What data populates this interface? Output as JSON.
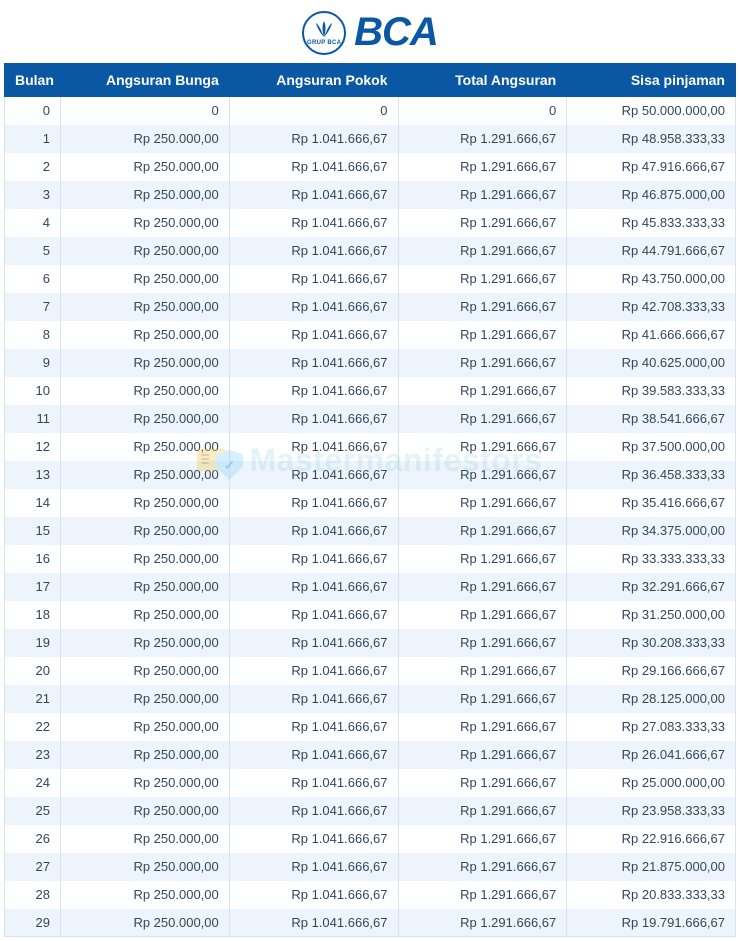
{
  "logo": {
    "brand": "BCA",
    "subtext": "GRUP BCA",
    "brand_color": "#0a57a3"
  },
  "watermark": {
    "text": "Mastermanifestors"
  },
  "table": {
    "type": "table",
    "header_bg": "#0a57a3",
    "header_fg": "#ffffff",
    "row_bg_odd": "#ffffff",
    "row_bg_even": "#eef4fb",
    "border_color": "#d9e3ee",
    "text_color": "#33475b",
    "font_size": 13,
    "columns": [
      "Bulan",
      "Angsuran Bunga",
      "Angsuran Pokok",
      "Total Angsuran",
      "Sisa pinjaman"
    ],
    "rows": [
      [
        "0",
        "0",
        "0",
        "0",
        "Rp 50.000.000,00"
      ],
      [
        "1",
        "Rp 250.000,00",
        "Rp 1.041.666,67",
        "Rp 1.291.666,67",
        "Rp 48.958.333,33"
      ],
      [
        "2",
        "Rp 250.000,00",
        "Rp 1.041.666,67",
        "Rp 1.291.666,67",
        "Rp 47.916.666,67"
      ],
      [
        "3",
        "Rp 250.000,00",
        "Rp 1.041.666,67",
        "Rp 1.291.666,67",
        "Rp 46.875.000,00"
      ],
      [
        "4",
        "Rp 250.000,00",
        "Rp 1.041.666,67",
        "Rp 1.291.666,67",
        "Rp 45.833.333,33"
      ],
      [
        "5",
        "Rp 250.000,00",
        "Rp 1.041.666,67",
        "Rp 1.291.666,67",
        "Rp 44.791.666,67"
      ],
      [
        "6",
        "Rp 250.000,00",
        "Rp 1.041.666,67",
        "Rp 1.291.666,67",
        "Rp 43.750.000,00"
      ],
      [
        "7",
        "Rp 250.000,00",
        "Rp 1.041.666,67",
        "Rp 1.291.666,67",
        "Rp 42.708.333,33"
      ],
      [
        "8",
        "Rp 250.000,00",
        "Rp 1.041.666,67",
        "Rp 1.291.666,67",
        "Rp 41.666.666,67"
      ],
      [
        "9",
        "Rp 250.000,00",
        "Rp 1.041.666,67",
        "Rp 1.291.666,67",
        "Rp 40.625.000,00"
      ],
      [
        "10",
        "Rp 250.000,00",
        "Rp 1.041.666,67",
        "Rp 1.291.666,67",
        "Rp 39.583.333,33"
      ],
      [
        "11",
        "Rp 250.000,00",
        "Rp 1.041.666,67",
        "Rp 1.291.666,67",
        "Rp 38.541.666,67"
      ],
      [
        "12",
        "Rp 250.000,00",
        "Rp 1.041.666,67",
        "Rp 1.291.666,67",
        "Rp 37.500.000,00"
      ],
      [
        "13",
        "Rp 250.000,00",
        "Rp 1.041.666,67",
        "Rp 1.291.666,67",
        "Rp 36.458.333,33"
      ],
      [
        "14",
        "Rp 250.000,00",
        "Rp 1.041.666,67",
        "Rp 1.291.666,67",
        "Rp 35.416.666,67"
      ],
      [
        "15",
        "Rp 250.000,00",
        "Rp 1.041.666,67",
        "Rp 1.291.666,67",
        "Rp 34.375.000,00"
      ],
      [
        "16",
        "Rp 250.000,00",
        "Rp 1.041.666,67",
        "Rp 1.291.666,67",
        "Rp 33.333.333,33"
      ],
      [
        "17",
        "Rp 250.000,00",
        "Rp 1.041.666,67",
        "Rp 1.291.666,67",
        "Rp 32.291.666,67"
      ],
      [
        "18",
        "Rp 250.000,00",
        "Rp 1.041.666,67",
        "Rp 1.291.666,67",
        "Rp 31.250.000,00"
      ],
      [
        "19",
        "Rp 250.000,00",
        "Rp 1.041.666,67",
        "Rp 1.291.666,67",
        "Rp 30.208.333,33"
      ],
      [
        "20",
        "Rp 250.000,00",
        "Rp 1.041.666,67",
        "Rp 1.291.666,67",
        "Rp 29.166.666,67"
      ],
      [
        "21",
        "Rp 250.000,00",
        "Rp 1.041.666,67",
        "Rp 1.291.666,67",
        "Rp 28.125.000,00"
      ],
      [
        "22",
        "Rp 250.000,00",
        "Rp 1.041.666,67",
        "Rp 1.291.666,67",
        "Rp 27.083.333,33"
      ],
      [
        "23",
        "Rp 250.000,00",
        "Rp 1.041.666,67",
        "Rp 1.291.666,67",
        "Rp 26.041.666,67"
      ],
      [
        "24",
        "Rp 250.000,00",
        "Rp 1.041.666,67",
        "Rp 1.291.666,67",
        "Rp 25.000.000,00"
      ],
      [
        "25",
        "Rp 250.000,00",
        "Rp 1.041.666,67",
        "Rp 1.291.666,67",
        "Rp 23.958.333,33"
      ],
      [
        "26",
        "Rp 250.000,00",
        "Rp 1.041.666,67",
        "Rp 1.291.666,67",
        "Rp 22.916.666,67"
      ],
      [
        "27",
        "Rp 250.000,00",
        "Rp 1.041.666,67",
        "Rp 1.291.666,67",
        "Rp 21.875.000,00"
      ],
      [
        "28",
        "Rp 250.000,00",
        "Rp 1.041.666,67",
        "Rp 1.291.666,67",
        "Rp 20.833.333,33"
      ],
      [
        "29",
        "Rp 250.000,00",
        "Rp 1.041.666,67",
        "Rp 1.291.666,67",
        "Rp 19.791.666,67"
      ]
    ]
  }
}
